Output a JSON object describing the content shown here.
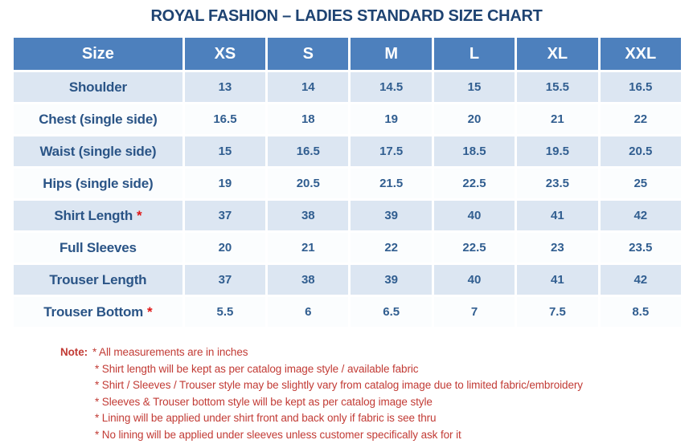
{
  "title": "ROYAL FASHION – LADIES STANDARD SIZE CHART",
  "colors": {
    "header_bg": "#4d80bd",
    "header_text": "#ffffff",
    "row_alt": "#dce6f2",
    "row_plain": "#fbfdfe",
    "label_text": "#2a5486",
    "value_text": "#315e90",
    "title_text": "#1e4372",
    "note_text": "#c23b35",
    "asterisk": "#e01616"
  },
  "table": {
    "columns": [
      "Size",
      "XS",
      "S",
      "M",
      "L",
      "XL",
      "XXL"
    ],
    "rows": [
      {
        "label": "Shoulder",
        "star": "",
        "values": [
          "13",
          "14",
          "14.5",
          "15",
          "15.5",
          "16.5"
        ]
      },
      {
        "label": "Chest (single side)",
        "star": "",
        "values": [
          "16.5",
          "18",
          "19",
          "20",
          "21",
          "22"
        ]
      },
      {
        "label": "Waist (single side)",
        "star": "",
        "values": [
          "15",
          "16.5",
          "17.5",
          "18.5",
          "19.5",
          "20.5"
        ]
      },
      {
        "label": "Hips (single side)",
        "star": "",
        "values": [
          "19",
          "20.5",
          "21.5",
          "22.5",
          "23.5",
          "25"
        ]
      },
      {
        "label": "Shirt Length",
        "star": "*",
        "values": [
          "37",
          "38",
          "39",
          "40",
          "41",
          "42"
        ]
      },
      {
        "label": "Full Sleeves",
        "star": "",
        "values": [
          "20",
          "21",
          "22",
          "22.5",
          "23",
          "23.5"
        ]
      },
      {
        "label": "Trouser Length",
        "star": "",
        "values": [
          "37",
          "38",
          "39",
          "40",
          "41",
          "42"
        ]
      },
      {
        "label": "Trouser Bottom",
        "star": "*",
        "values": [
          "5.5",
          "6",
          "6.5",
          "7",
          "7.5",
          "8.5"
        ]
      }
    ]
  },
  "notes": {
    "label": "Note:",
    "lines": [
      "* All measurements are in inches",
      "* Shirt length will be kept as per catalog image style / available fabric",
      "* Shirt / Sleeves / Trouser style may be slightly vary from catalog image due to limited fabric/embroidery",
      "* Sleeves & Trouser bottom style will be kept as per catalog image style",
      "* Lining will be applied under shirt front and back only if fabric is see thru",
      "* No lining will be applied under sleeves unless customer specifically ask for it"
    ]
  }
}
